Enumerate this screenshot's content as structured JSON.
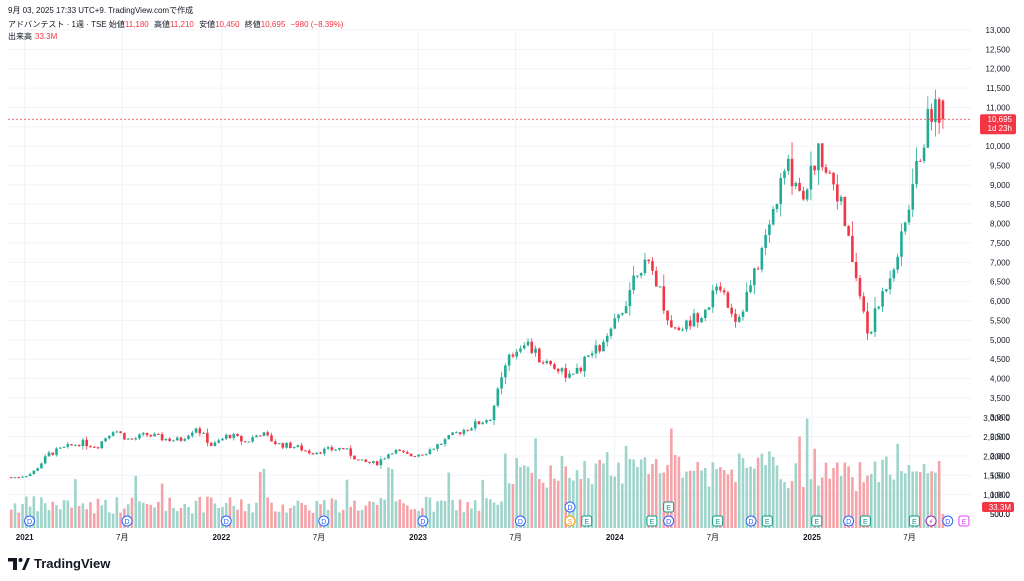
{
  "header": {
    "timestamp": "9月 03, 2025 17:33 UTC+9",
    "credit": "TradingView.comで作成"
  },
  "legend": {
    "symbol": "アドバンテスト · 1週 · TSE",
    "open_label": "始値",
    "open": "11,180",
    "high_label": "高値",
    "high": "11,210",
    "low_label": "安値",
    "low": "10,450",
    "close_label": "終値",
    "close": "10,695",
    "change": "−980 (−8.39%)",
    "volume_label": "出来高",
    "volume": "33.3M"
  },
  "price_marker": {
    "price": "10,695",
    "countdown": "1d 23h",
    "color": "#f23645"
  },
  "volume_marker": {
    "value": "33.3M",
    "color": "#f23645"
  },
  "colors": {
    "up": "#22ab94",
    "down": "#f23645",
    "vol_up": "#9fd4cb",
    "vol_down": "#f5a3a8",
    "grid": "#f0f3fa",
    "axis_text": "#131722"
  },
  "event_icons": {
    "dividend": "D",
    "earnings": "E",
    "split": "S",
    "flash": "⚡"
  },
  "footer": {
    "brand": "TradingView"
  },
  "chart_data": {
    "type": "candlestick",
    "title": "アドバンテスト · 1週 · TSE",
    "interval": "1W",
    "y_axis": {
      "position": "right",
      "range": [
        0,
        13000
      ],
      "ticks": [
        "13,000",
        "12,500",
        "12,000",
        "11,500",
        "11,000",
        "10,500",
        "10,000",
        "9,500",
        "9,000",
        "8,500",
        "8,000",
        "7,500",
        "7,000",
        "6,500",
        "6,000",
        "5,500",
        "5,000",
        "4,500",
        "4,000",
        "3,500",
        "3,000",
        "2,500",
        "2,000",
        "1,500",
        "1,000",
        "500.0"
      ],
      "tick_values": [
        13000,
        12500,
        12000,
        11500,
        11000,
        10500,
        10000,
        9500,
        9000,
        8500,
        8000,
        7500,
        7000,
        6500,
        6000,
        5500,
        5000,
        4500,
        4000,
        3500,
        3000,
        2500,
        2000,
        1500,
        1000,
        500
      ]
    },
    "x_axis": {
      "labels": [
        "2021",
        "7月",
        "2022",
        "7月",
        "2023",
        "7月",
        "2024",
        "7月",
        "2025",
        "7月"
      ],
      "label_positions_date": [
        "2021-01",
        "2021-07",
        "2022-01",
        "2022-07",
        "2023-01",
        "2023-07",
        "2024-01",
        "2024-07",
        "2025-01",
        "2025-07"
      ]
    },
    "price_anchors": {
      "description": "approximate weekly closing prices read from chart (date, price)",
      "points": [
        [
          "2020-12",
          1450
        ],
        [
          "2021-01",
          1550
        ],
        [
          "2021-02",
          2050
        ],
        [
          "2021-03",
          2200
        ],
        [
          "2021-04",
          2350
        ],
        [
          "2021-05",
          2250
        ],
        [
          "2021-06",
          2700
        ],
        [
          "2021-07",
          2400
        ],
        [
          "2021-08",
          2550
        ],
        [
          "2021-09",
          2450
        ],
        [
          "2021-10",
          2400
        ],
        [
          "2021-11",
          2750
        ],
        [
          "2021-12",
          2250
        ],
        [
          "2022-01",
          2550
        ],
        [
          "2022-02",
          2350
        ],
        [
          "2022-03",
          2600
        ],
        [
          "2022-04",
          2300
        ],
        [
          "2022-05",
          2250
        ],
        [
          "2022-06",
          2100
        ],
        [
          "2022-07",
          2150
        ],
        [
          "2022-08",
          2200
        ],
        [
          "2022-09",
          1850
        ],
        [
          "2022-10",
          1800
        ],
        [
          "2022-11",
          2150
        ],
        [
          "2022-12",
          2000
        ],
        [
          "2023-01",
          2100
        ],
        [
          "2023-02",
          2350
        ],
        [
          "2023-03",
          2600
        ],
        [
          "2023-04",
          2800
        ],
        [
          "2023-05",
          3000
        ],
        [
          "2023-06",
          4400
        ],
        [
          "2023-07",
          5000
        ],
        [
          "2023-08",
          4500
        ],
        [
          "2023-09",
          4300
        ],
        [
          "2023-10",
          4000
        ],
        [
          "2023-11",
          4600
        ],
        [
          "2023-12",
          4900
        ],
        [
          "2024-01",
          5800
        ],
        [
          "2024-02",
          7000
        ],
        [
          "2024-03",
          6700
        ],
        [
          "2024-04",
          5300
        ],
        [
          "2024-05",
          5400
        ],
        [
          "2024-06",
          5800
        ],
        [
          "2024-07",
          6400
        ],
        [
          "2024-08",
          5500
        ],
        [
          "2024-09",
          6600
        ],
        [
          "2024-10",
          8000
        ],
        [
          "2024-11",
          9500
        ],
        [
          "2024-12",
          8800
        ],
        [
          "2025-01",
          9900
        ],
        [
          "2025-02",
          9000
        ],
        [
          "2025-03",
          7200
        ],
        [
          "2025-04",
          5100
        ],
        [
          "2025-05",
          6300
        ],
        [
          "2025-06",
          7500
        ],
        [
          "2025-07",
          9500
        ],
        [
          "2025-08",
          11200
        ],
        [
          "2025-09",
          10695
        ]
      ]
    },
    "last_candle": {
      "open": 11180,
      "high": 11210,
      "low": 10450,
      "close": 10695
    },
    "volume": {
      "last": "33.3M",
      "axis_ticks": [
        "3,000.0",
        "2,500.0",
        "2,000.0",
        "1,500.0",
        "1,000.0",
        "500.0"
      ]
    }
  }
}
